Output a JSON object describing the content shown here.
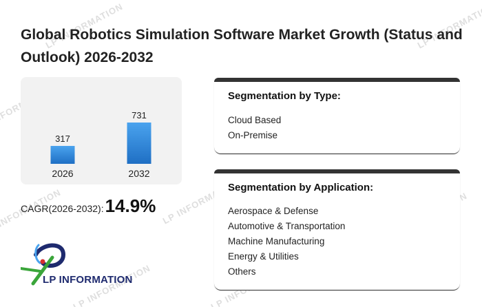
{
  "title": "Global Robotics Simulation Software Market Growth (Status and Outlook) 2026-2032",
  "chart_data": {
    "type": "bar",
    "categories": [
      "2026",
      "2032"
    ],
    "values": [
      317,
      731
    ],
    "colors": {
      "bar_top": "#4aa3ee",
      "bar_bottom": "#1f6fc4",
      "panel": "#f2f2f2"
    }
  },
  "cagr": {
    "label": "CAGR(2026-2032):",
    "value": "14.9%"
  },
  "segmentation_type": {
    "title": "Segmentation by Type:",
    "items": [
      "Cloud Based",
      "On-Premise"
    ]
  },
  "segmentation_application": {
    "title": "Segmentation by Application:",
    "items": [
      "Aerospace & Defense",
      "Automotive & Transportation",
      "Machine Manufacturing",
      "Energy & Utilities",
      "Others"
    ]
  },
  "logo": {
    "text": "LP INFORMATION",
    "icon": "lp-information-logo-icon"
  },
  "watermark": {
    "text": "LP INFORMATION"
  },
  "colors": {
    "accent_dark": "#333333",
    "logo_blue": "#1e2a6e",
    "logo_green": "#3aa53a",
    "logo_red": "#d62f2f"
  }
}
